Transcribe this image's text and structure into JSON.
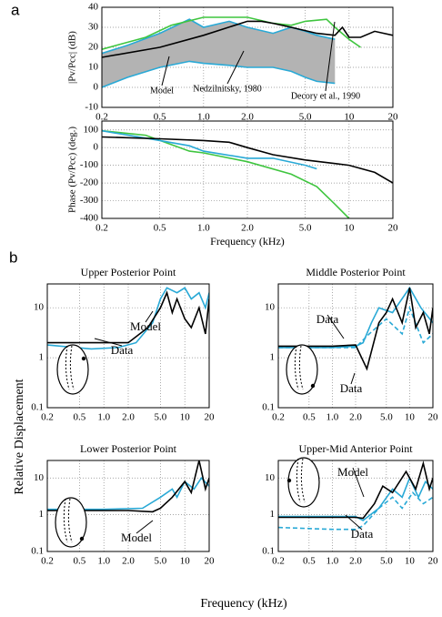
{
  "figure": {
    "panels": [
      "a",
      "b"
    ],
    "ylabel": "Relative Displacement",
    "xlabel": "Frequency (kHz)"
  },
  "chart_data": [
    {
      "type": "line",
      "ylabel": "|Pv/Pcc| (dB)",
      "xlog": true,
      "xlim": [
        0.2,
        20
      ],
      "xticks": [
        0.2,
        0.5,
        {
          "value": 1,
          "label": "1.0"
        },
        {
          "value": 2,
          "label": "2.0"
        },
        {
          "value": 5,
          "label": "5.0"
        },
        10,
        20
      ],
      "ylim": [
        -10,
        40
      ],
      "yticks": [
        -10,
        0,
        10,
        20,
        30,
        40
      ],
      "grid": true,
      "series": [
        {
          "name": "Nedzilnitsky, 1980",
          "color": "#29a9d6",
          "fill": "#b3b3b3",
          "x": [
            0.2,
            0.3,
            0.5,
            0.8,
            1,
            1.5,
            2,
            3,
            4,
            5,
            6,
            8
          ],
          "values": [
            17,
            21,
            27,
            34,
            30,
            33,
            30,
            27,
            30,
            28,
            26,
            24
          ],
          "lower": [
            0,
            5,
            10,
            13,
            12,
            11,
            10,
            10,
            8,
            5,
            3,
            2
          ]
        },
        {
          "name": "Decory et al., 1990",
          "color": "#3fc53f",
          "x": [
            0.2,
            0.4,
            0.6,
            1,
            2,
            3,
            4,
            5,
            7,
            8,
            10,
            12
          ],
          "values": [
            19,
            25,
            31,
            35,
            35,
            32,
            31,
            33,
            34,
            30,
            24,
            20
          ]
        },
        {
          "name": "Model",
          "color": "#000000",
          "x": [
            0.2,
            0.5,
            1,
            2,
            2.5,
            3,
            4,
            6,
            8,
            9,
            10,
            12,
            15,
            20
          ],
          "values": [
            15,
            20,
            26,
            33,
            33,
            32,
            30,
            27,
            26,
            30,
            25,
            25,
            28,
            26
          ]
        }
      ]
    },
    {
      "type": "line",
      "ylabel": "Phase (Pv/Pcc) (deg.)",
      "xlabel": "Frequency (kHz)",
      "xlog": true,
      "xlim": [
        0.2,
        20
      ],
      "xticks": [
        0.2,
        0.5,
        {
          "value": 1,
          "label": "1.0"
        },
        {
          "value": 2,
          "label": "2.0"
        },
        {
          "value": 5,
          "label": "5.0"
        },
        10,
        20
      ],
      "ylim": [
        -400,
        150
      ],
      "yticks": [
        -400,
        -300,
        -200,
        -100,
        0,
        100
      ],
      "grid": true,
      "series": [
        {
          "color": "#3fc53f",
          "x": [
            0.2,
            0.4,
            0.8,
            1,
            2,
            4,
            6,
            8,
            10
          ],
          "values": [
            95,
            70,
            -20,
            -30,
            -80,
            -150,
            -220,
            -320,
            -400
          ]
        },
        {
          "color": "#29a9d6",
          "x": [
            0.2,
            0.5,
            0.8,
            1,
            2,
            3,
            5,
            6
          ],
          "values": [
            95,
            40,
            10,
            -20,
            -60,
            -60,
            -100,
            -120
          ]
        },
        {
          "color": "#000000",
          "x": [
            0.2,
            0.5,
            1,
            1.5,
            2,
            3,
            5,
            8,
            10,
            15,
            20
          ],
          "values": [
            60,
            50,
            40,
            30,
            0,
            -40,
            -70,
            -90,
            -100,
            -140,
            -200
          ]
        }
      ]
    },
    {
      "type": "line",
      "title": "Upper Posterior Point",
      "xlog": true,
      "ylog": true,
      "xlim": [
        0.2,
        20
      ],
      "xticks": [
        0.2,
        0.5,
        {
          "value": 1,
          "label": "1.0"
        },
        {
          "value": 2,
          "label": "2.0"
        },
        {
          "value": 5,
          "label": "5.0"
        },
        10,
        20
      ],
      "ylim": [
        0.1,
        30
      ],
      "yticks": [
        0.1,
        1,
        10
      ],
      "grid": true,
      "series": [
        {
          "name": "Data",
          "color": "#29a9d6",
          "x": [
            0.2,
            0.7,
            1.5,
            2.5,
            4,
            5,
            6,
            8,
            10,
            12,
            15,
            18,
            20
          ],
          "values": [
            1.8,
            1.5,
            1.6,
            2,
            5,
            15,
            25,
            20,
            25,
            15,
            20,
            10,
            20
          ]
        },
        {
          "name": "Model",
          "color": "#000000",
          "x": [
            0.2,
            1,
            2,
            3.5,
            5,
            6,
            7,
            8,
            10,
            12,
            15,
            18,
            20
          ],
          "values": [
            2,
            2,
            2,
            4,
            10,
            20,
            8,
            15,
            6,
            4,
            10,
            3,
            15
          ]
        }
      ]
    },
    {
      "type": "line",
      "title": "Middle Posterior Point",
      "xlog": true,
      "ylog": true,
      "xlim": [
        0.2,
        20
      ],
      "xticks": [
        0.2,
        0.5,
        {
          "value": 1,
          "label": "1.0"
        },
        {
          "value": 2,
          "label": "2.0"
        },
        {
          "value": 5,
          "label": "5.0"
        },
        10,
        20
      ],
      "ylim": [
        0.1,
        30
      ],
      "yticks": [
        0.1,
        1,
        10
      ],
      "grid": true,
      "series": [
        {
          "color": "#29a9d6",
          "dash": true,
          "x": [
            0.2,
            1,
            2,
            3,
            5,
            8,
            10,
            15,
            20
          ],
          "values": [
            1.6,
            1.6,
            1.6,
            3,
            6,
            3,
            10,
            2,
            3
          ]
        },
        {
          "name": "Data",
          "color": "#29a9d6",
          "x": [
            0.2,
            1,
            2,
            2.5,
            3.2,
            4,
            6,
            10,
            14,
            20
          ],
          "values": [
            1.6,
            1.6,
            1.7,
            2,
            5,
            10,
            8,
            25,
            10,
            5
          ]
        },
        {
          "name": "Model",
          "color": "#000000",
          "x": [
            0.2,
            1,
            2,
            2.8,
            4,
            5,
            6,
            8,
            10,
            12,
            15,
            18,
            20
          ],
          "values": [
            1.7,
            1.7,
            1.8,
            0.6,
            5,
            8,
            15,
            5,
            25,
            4,
            8,
            3,
            10
          ]
        }
      ]
    },
    {
      "type": "line",
      "title": "Lower Posterior Point",
      "xlog": true,
      "ylog": true,
      "xlim": [
        0.2,
        20
      ],
      "xticks": [
        0.2,
        0.5,
        {
          "value": 1,
          "label": "1.0"
        },
        {
          "value": 2,
          "label": "2.0"
        },
        {
          "value": 5,
          "label": "5.0"
        },
        10,
        20
      ],
      "ylim": [
        0.1,
        30
      ],
      "yticks": [
        0.1,
        1,
        10
      ],
      "grid": true,
      "series": [
        {
          "color": "#29a9d6",
          "x": [
            0.2,
            1,
            3,
            5,
            7,
            8,
            10,
            13,
            16,
            20
          ],
          "values": [
            1.4,
            1.4,
            1.5,
            3,
            5,
            3,
            8,
            5,
            10,
            6
          ]
        },
        {
          "name": "Model",
          "color": "#000000",
          "x": [
            0.2,
            1,
            2,
            4,
            5,
            7,
            10,
            12,
            15,
            18,
            20
          ],
          "values": [
            1.3,
            1.3,
            1.3,
            1.2,
            1.5,
            3,
            8,
            4,
            30,
            5,
            10
          ]
        }
      ]
    },
    {
      "type": "line",
      "title": "Upper-Mid Anterior Point",
      "xlog": true,
      "ylog": true,
      "xlim": [
        0.2,
        20
      ],
      "xticks": [
        0.2,
        0.5,
        {
          "value": 1,
          "label": "1.0"
        },
        {
          "value": 2,
          "label": "2.0"
        },
        {
          "value": 5,
          "label": "5.0"
        },
        10,
        20
      ],
      "ylim": [
        0.1,
        30
      ],
      "yticks": [
        0.1,
        1,
        10
      ],
      "grid": true,
      "series": [
        {
          "color": "#29a9d6",
          "dash": true,
          "x": [
            0.2,
            1,
            2,
            2.5,
            4,
            6,
            8,
            11,
            15,
            20
          ],
          "values": [
            0.45,
            0.4,
            0.4,
            0.5,
            1.5,
            3,
            1.5,
            4,
            2,
            3
          ]
        },
        {
          "name": "Data",
          "color": "#29a9d6",
          "x": [
            0.2,
            1,
            2,
            2.5,
            4,
            6,
            8,
            10,
            13,
            16,
            20
          ],
          "values": [
            0.9,
            0.9,
            0.9,
            0.7,
            1.5,
            5,
            3,
            10,
            3,
            8,
            5
          ]
        },
        {
          "name": "Model",
          "color": "#000000",
          "x": [
            0.2,
            1,
            2,
            2.5,
            3.5,
            4.5,
            6,
            9,
            12,
            15,
            18,
            20
          ],
          "values": [
            0.85,
            0.85,
            0.85,
            0.8,
            2,
            6,
            4,
            15,
            5,
            25,
            5,
            10
          ]
        }
      ]
    }
  ]
}
